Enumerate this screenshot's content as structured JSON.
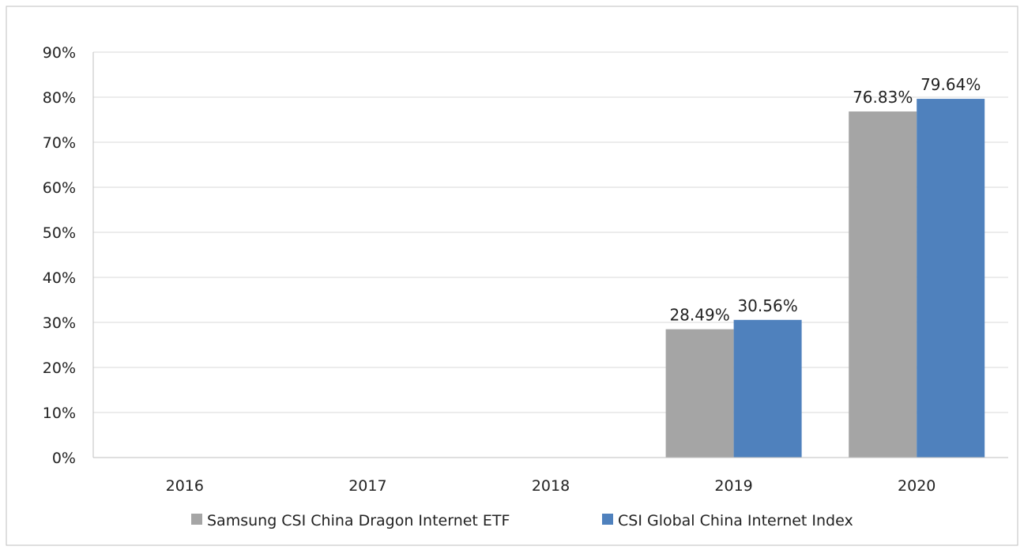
{
  "chart_data": {
    "type": "bar",
    "title": "",
    "xlabel": "",
    "ylabel": "",
    "categories": [
      "2016",
      "2017",
      "2018",
      "2019",
      "2020"
    ],
    "series": [
      {
        "name": "Samsung CSI China Dragon Internet ETF",
        "color": "#a5a5a5",
        "values": [
          null,
          null,
          null,
          28.49,
          76.83
        ],
        "labels": [
          "",
          "",
          "",
          "28.49%",
          "76.83%"
        ]
      },
      {
        "name": "CSI Global China Internet Index",
        "color": "#4f81bd",
        "values": [
          null,
          null,
          null,
          30.56,
          79.64
        ],
        "labels": [
          "",
          "",
          "",
          "30.56%",
          "79.64%"
        ]
      }
    ],
    "ylim": [
      0,
      90
    ],
    "yticks": [
      0,
      10,
      20,
      30,
      40,
      50,
      60,
      70,
      80,
      90
    ],
    "ytick_labels": [
      "0%",
      "10%",
      "20%",
      "30%",
      "40%",
      "50%",
      "60%",
      "70%",
      "80%",
      "90%"
    ],
    "grid": true,
    "legend": "bottom"
  }
}
